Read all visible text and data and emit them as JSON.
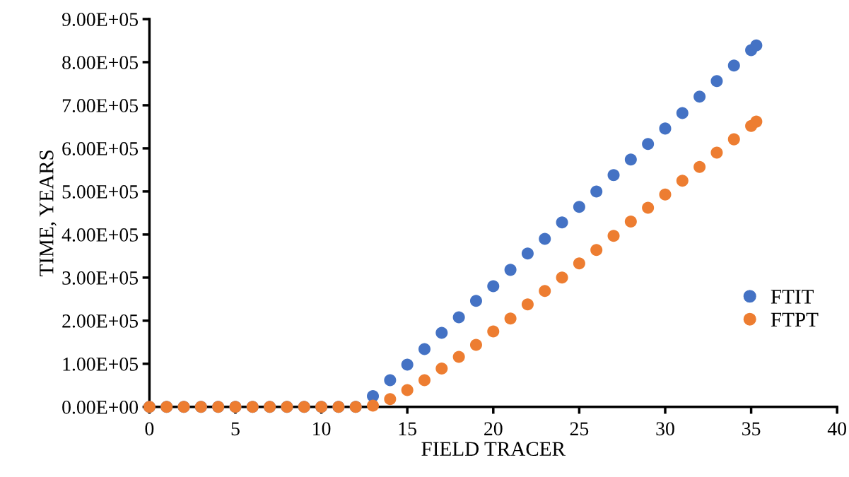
{
  "chart_data": {
    "type": "scatter",
    "xlabel": "FIELD TRACER",
    "ylabel": "TIME, YEARS",
    "x": [
      0,
      1,
      2,
      3,
      4,
      5,
      6,
      7,
      8,
      9,
      10,
      11,
      12,
      13,
      14,
      15,
      16,
      17,
      18,
      19,
      20,
      21,
      22,
      23,
      24,
      25,
      26,
      27,
      28,
      29,
      30,
      31,
      32,
      33,
      34,
      35,
      35.3
    ],
    "series": [
      {
        "name": "FTIT",
        "color": "#4472c4",
        "values": [
          0,
          0,
          0,
          0,
          0,
          0,
          0,
          0,
          0,
          0,
          0,
          0,
          0,
          25000,
          62000,
          98000,
          134000,
          172000,
          208000,
          246000,
          280000,
          318000,
          356000,
          390000,
          428000,
          464000,
          500000,
          538000,
          574000,
          610000,
          646000,
          682000,
          720000,
          756000,
          792000,
          828000,
          839000
        ]
      },
      {
        "name": "FTPT",
        "color": "#ed7d31",
        "values": [
          0,
          0,
          0,
          0,
          0,
          0,
          0,
          0,
          0,
          0,
          0,
          0,
          0,
          3000,
          18000,
          39000,
          62000,
          89000,
          116000,
          144000,
          175000,
          205000,
          238000,
          269000,
          300000,
          333000,
          364000,
          397000,
          430000,
          462000,
          493000,
          525000,
          557000,
          590000,
          621000,
          652000,
          662000
        ]
      }
    ],
    "xlim": [
      0,
      40
    ],
    "xticks": [
      0,
      5,
      10,
      15,
      20,
      25,
      30,
      35,
      40
    ],
    "ylim": [
      0,
      900000
    ],
    "yticks": [
      {
        "value": 0,
        "label": "0.00E+00"
      },
      {
        "value": 100000,
        "label": "1.00E+05"
      },
      {
        "value": 200000,
        "label": "2.00E+05"
      },
      {
        "value": 300000,
        "label": "3.00E+05"
      },
      {
        "value": 400000,
        "label": "4.00E+05"
      },
      {
        "value": 500000,
        "label": "5.00E+05"
      },
      {
        "value": 600000,
        "label": "6.00E+05"
      },
      {
        "value": 700000,
        "label": "7.00E+05"
      },
      {
        "value": 800000,
        "label": "8.00E+05"
      },
      {
        "value": 900000,
        "label": "9.00E+05"
      }
    ],
    "grid": false,
    "legend": "right",
    "marker": "circle"
  }
}
